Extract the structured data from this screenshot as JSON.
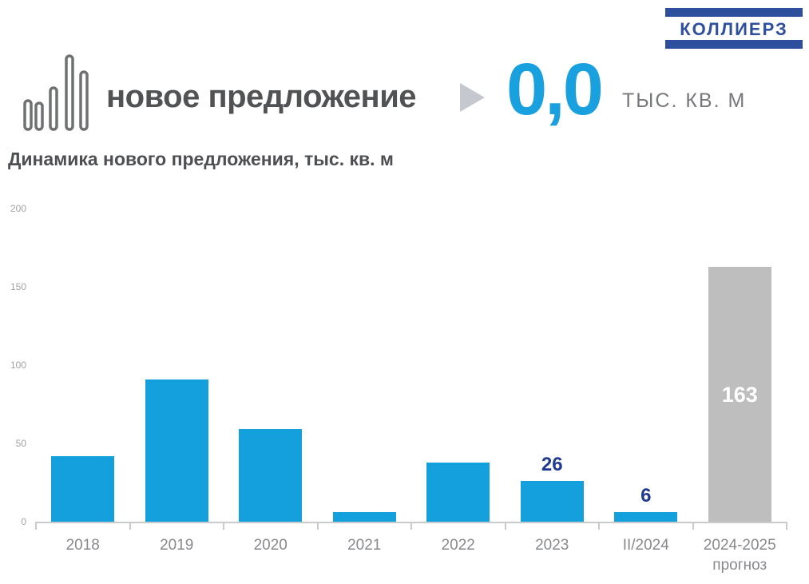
{
  "logo": {
    "text": "КОЛЛИЕРЗ"
  },
  "header": {
    "title": "новое предложение",
    "value": "0,0",
    "unit": "ТЫС. КВ. М"
  },
  "chart_data": {
    "type": "bar",
    "title": "Динамика нового предложения, тыс. кв. м",
    "categories": [
      "2018",
      "2019",
      "2020",
      "2021",
      "2022",
      "2023",
      "II/2024",
      "2024-2025"
    ],
    "category_sublabels": [
      "",
      "",
      "",
      "",
      "",
      "",
      "",
      "прогноз"
    ],
    "values": [
      42,
      91,
      59,
      6,
      38,
      26,
      6,
      163
    ],
    "yticks": [
      0,
      50,
      100,
      150,
      200
    ],
    "ylim": [
      0,
      200
    ],
    "grid": false,
    "legend": false,
    "bar_colors": [
      "#14A0DC",
      "#14A0DC",
      "#14A0DC",
      "#14A0DC",
      "#14A0DC",
      "#14A0DC",
      "#14A0DC",
      "#BEBEBE"
    ],
    "data_labels": [
      {
        "index": 5,
        "text": "26",
        "position": "above",
        "color": "#1F3A8F"
      },
      {
        "index": 6,
        "text": "6",
        "position": "above",
        "color": "#1F3A8F"
      },
      {
        "index": 7,
        "text": "163",
        "position": "inside",
        "color": "#FFFFFF"
      }
    ]
  },
  "colors": {
    "accent_blue": "#14A0DC",
    "forecast_gray": "#BEBEBE",
    "navy_label": "#1F3A8F",
    "logo_navy": "#2E4F9E",
    "axis_gray": "#C9CACC"
  }
}
